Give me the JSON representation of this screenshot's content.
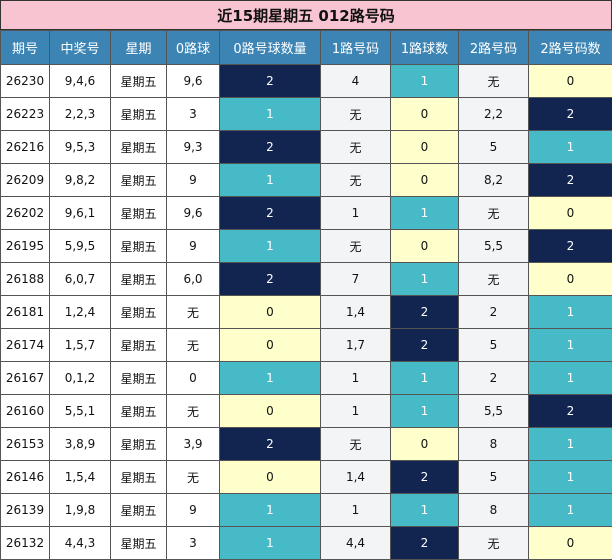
{
  "title": "近15期星期五 012路号码",
  "colors": {
    "title_bg": "#f9c4d2",
    "header_bg": "#3c84b4",
    "navy": "#122551",
    "teal": "#46bac7",
    "cream": "#ffffcc",
    "light_gray": "#f3f4f6"
  },
  "columns": [
    "期号",
    "中奖号",
    "星期",
    "0路球",
    "0路号球数量",
    "1路号码",
    "1路球数",
    "2路号码",
    "2路号码数"
  ],
  "rows": [
    {
      "issue": "26230",
      "number": "9,4,6",
      "weekday": "星期五",
      "r0_ball": "9,6",
      "r0_count": "2",
      "r1_nums": "4",
      "r1_count": "1",
      "r2_nums": "无",
      "r2_count": "0"
    },
    {
      "issue": "26223",
      "number": "2,2,3",
      "weekday": "星期五",
      "r0_ball": "3",
      "r0_count": "1",
      "r1_nums": "无",
      "r1_count": "0",
      "r2_nums": "2,2",
      "r2_count": "2"
    },
    {
      "issue": "26216",
      "number": "9,5,3",
      "weekday": "星期五",
      "r0_ball": "9,3",
      "r0_count": "2",
      "r1_nums": "无",
      "r1_count": "0",
      "r2_nums": "5",
      "r2_count": "1"
    },
    {
      "issue": "26209",
      "number": "9,8,2",
      "weekday": "星期五",
      "r0_ball": "9",
      "r0_count": "1",
      "r1_nums": "无",
      "r1_count": "0",
      "r2_nums": "8,2",
      "r2_count": "2"
    },
    {
      "issue": "26202",
      "number": "9,6,1",
      "weekday": "星期五",
      "r0_ball": "9,6",
      "r0_count": "2",
      "r1_nums": "1",
      "r1_count": "1",
      "r2_nums": "无",
      "r2_count": "0"
    },
    {
      "issue": "26195",
      "number": "5,9,5",
      "weekday": "星期五",
      "r0_ball": "9",
      "r0_count": "1",
      "r1_nums": "无",
      "r1_count": "0",
      "r2_nums": "5,5",
      "r2_count": "2"
    },
    {
      "issue": "26188",
      "number": "6,0,7",
      "weekday": "星期五",
      "r0_ball": "6,0",
      "r0_count": "2",
      "r1_nums": "7",
      "r1_count": "1",
      "r2_nums": "无",
      "r2_count": "0"
    },
    {
      "issue": "26181",
      "number": "1,2,4",
      "weekday": "星期五",
      "r0_ball": "无",
      "r0_count": "0",
      "r1_nums": "1,4",
      "r1_count": "2",
      "r2_nums": "2",
      "r2_count": "1"
    },
    {
      "issue": "26174",
      "number": "1,5,7",
      "weekday": "星期五",
      "r0_ball": "无",
      "r0_count": "0",
      "r1_nums": "1,7",
      "r1_count": "2",
      "r2_nums": "5",
      "r2_count": "1"
    },
    {
      "issue": "26167",
      "number": "0,1,2",
      "weekday": "星期五",
      "r0_ball": "0",
      "r0_count": "1",
      "r1_nums": "1",
      "r1_count": "1",
      "r2_nums": "2",
      "r2_count": "1"
    },
    {
      "issue": "26160",
      "number": "5,5,1",
      "weekday": "星期五",
      "r0_ball": "无",
      "r0_count": "0",
      "r1_nums": "1",
      "r1_count": "1",
      "r2_nums": "5,5",
      "r2_count": "2"
    },
    {
      "issue": "26153",
      "number": "3,8,9",
      "weekday": "星期五",
      "r0_ball": "3,9",
      "r0_count": "2",
      "r1_nums": "无",
      "r1_count": "0",
      "r2_nums": "8",
      "r2_count": "1"
    },
    {
      "issue": "26146",
      "number": "1,5,4",
      "weekday": "星期五",
      "r0_ball": "无",
      "r0_count": "0",
      "r1_nums": "1,4",
      "r1_count": "2",
      "r2_nums": "5",
      "r2_count": "1"
    },
    {
      "issue": "26139",
      "number": "1,9,8",
      "weekday": "星期五",
      "r0_ball": "9",
      "r0_count": "1",
      "r1_nums": "1",
      "r1_count": "1",
      "r2_nums": "8",
      "r2_count": "1"
    },
    {
      "issue": "26132",
      "number": "4,4,3",
      "weekday": "星期五",
      "r0_ball": "3",
      "r0_count": "1",
      "r1_nums": "4,4",
      "r1_count": "2",
      "r2_nums": "无",
      "r2_count": "0"
    }
  ]
}
